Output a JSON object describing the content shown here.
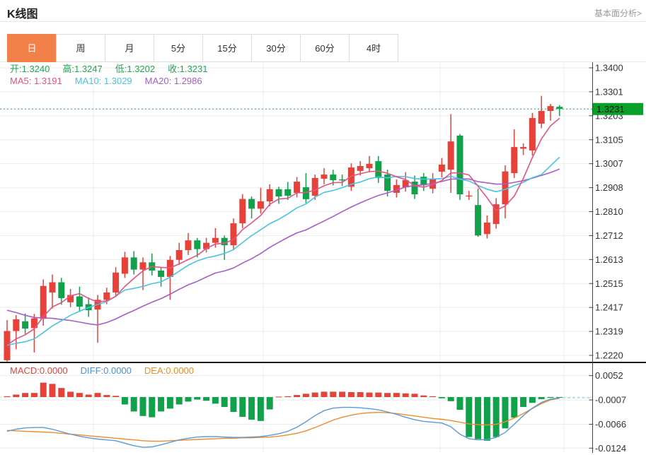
{
  "header": {
    "title": "K线图",
    "link_label": "基本面分析>"
  },
  "tabs": [
    {
      "label": "日",
      "active": true
    },
    {
      "label": "周",
      "active": false
    },
    {
      "label": "月",
      "active": false
    },
    {
      "label": "5分",
      "active": false
    },
    {
      "label": "15分",
      "active": false
    },
    {
      "label": "30分",
      "active": false
    },
    {
      "label": "60分",
      "active": false
    },
    {
      "label": "4时",
      "active": false
    }
  ],
  "legend_ohlc": [
    {
      "key": "open",
      "label": "开",
      "value": "1.3240"
    },
    {
      "key": "high",
      "label": "高",
      "value": "1.3247"
    },
    {
      "key": "low",
      "label": "低",
      "value": "1.3202"
    },
    {
      "key": "close",
      "label": "收",
      "value": "1.3231"
    }
  ],
  "legend_ma": [
    {
      "key": "ma5",
      "label": "MA5",
      "value": "1.3191"
    },
    {
      "key": "ma10",
      "label": "MA10",
      "value": "1.3029"
    },
    {
      "key": "ma20",
      "label": "MA20",
      "value": "1.2986"
    }
  ],
  "legend_macd": [
    {
      "key": "macd",
      "label": "MACD",
      "value": "0.0000"
    },
    {
      "key": "diff",
      "label": "DIFF",
      "value": "0.0000"
    },
    {
      "key": "dea",
      "label": "DEA",
      "value": "0.0000"
    }
  ],
  "colors": {
    "up": "#e64239",
    "down": "#12a14b",
    "ma5": "#e85285",
    "ma10": "#49c4e4",
    "ma20": "#a75ec6",
    "diff": "#5b9bd5",
    "dea": "#ee8c2b",
    "ohlc_text": "#21a84e",
    "macd_text": "#e5433b",
    "diff_text": "#4a90d9",
    "dea_text": "#f08c1e",
    "price_line": "#1fa84e",
    "badge_bg": "#0aa02a",
    "badge_text": "#111111",
    "grid": "#ececec",
    "axis": "#444444",
    "separator": "#1a1a1a",
    "zero_dash": "#cfe8d8",
    "ext_dash": "#a9d7ea",
    "label_text": "#333333"
  },
  "chart_data": {
    "type": "candlestick",
    "title": "K线图",
    "interval": "日",
    "grid": true,
    "legend_position": "top-left",
    "current_price": 1.3231,
    "current_price_label": "1.3231",
    "y_axis_labels_main": [
      "1.3400",
      "1.3301",
      "1.3203",
      "1.3105",
      "1.3007",
      "1.2908",
      "1.2810",
      "1.2712",
      "1.2613",
      "1.2515",
      "1.2417",
      "1.2319",
      "1.2220"
    ],
    "y_main_max": 1.34,
    "y_main_min": 1.222,
    "y_axis_labels_macd": [
      "0.0052",
      "-0.0007",
      "-0.0066",
      "-0.0124"
    ],
    "macd_axis_values": [
      0.0052,
      -0.0007,
      -0.0066,
      -0.0124
    ],
    "ma_periods": [
      5,
      10,
      20
    ],
    "ohlc_last": {
      "open": 1.324,
      "high": 1.3247,
      "low": 1.3202,
      "close": 1.3231
    },
    "candles_ohlc": [
      [
        1.22,
        1.2365,
        1.2195,
        1.232
      ],
      [
        1.232,
        1.2385,
        1.2245,
        1.2368
      ],
      [
        1.236,
        1.2392,
        1.2308,
        1.233
      ],
      [
        1.2332,
        1.239,
        1.2232,
        1.2372
      ],
      [
        1.237,
        1.2532,
        1.2342,
        1.2505
      ],
      [
        1.2478,
        1.2552,
        1.2412,
        1.252
      ],
      [
        1.252,
        1.2538,
        1.2428,
        1.2455
      ],
      [
        1.2438,
        1.2492,
        1.2418,
        1.2468
      ],
      [
        1.2462,
        1.2502,
        1.2398,
        1.242
      ],
      [
        1.243,
        1.2458,
        1.2378,
        1.2405
      ],
      [
        1.2408,
        1.2468,
        1.2272,
        1.2448
      ],
      [
        1.2448,
        1.2498,
        1.243,
        1.2478
      ],
      [
        1.2478,
        1.2582,
        1.2462,
        1.256
      ],
      [
        1.2555,
        1.2645,
        1.2538,
        1.2622
      ],
      [
        1.2622,
        1.2648,
        1.2552,
        1.2572
      ],
      [
        1.2572,
        1.2622,
        1.2488,
        1.2602
      ],
      [
        1.2602,
        1.2638,
        1.2548,
        1.2568
      ],
      [
        1.2568,
        1.2582,
        1.2502,
        1.2542
      ],
      [
        1.2542,
        1.2628,
        1.2448,
        1.2612
      ],
      [
        1.2612,
        1.2682,
        1.2592,
        1.2652
      ],
      [
        1.2652,
        1.2722,
        1.2632,
        1.2692
      ],
      [
        1.2692,
        1.2702,
        1.2622,
        1.2656
      ],
      [
        1.2656,
        1.2702,
        1.2642,
        1.2682
      ],
      [
        1.2682,
        1.2742,
        1.2662,
        1.2702
      ],
      [
        1.2702,
        1.2712,
        1.2612,
        1.2672
      ],
      [
        1.2672,
        1.2782,
        1.2652,
        1.2762
      ],
      [
        1.2762,
        1.2882,
        1.2742,
        1.2862
      ],
      [
        1.2862,
        1.2872,
        1.2782,
        1.2822
      ],
      [
        1.2822,
        1.2908,
        1.2802,
        1.2852
      ],
      [
        1.2852,
        1.2922,
        1.2832,
        1.2902
      ],
      [
        1.2902,
        1.2912,
        1.2842,
        1.2872
      ],
      [
        1.2902,
        1.2932,
        1.2858,
        1.2875
      ],
      [
        1.2887,
        1.2952,
        1.2868,
        1.2933
      ],
      [
        1.291,
        1.2968,
        1.2845,
        1.2861
      ],
      [
        1.2875,
        1.2962,
        1.2858,
        1.2948
      ],
      [
        1.2945,
        1.2988,
        1.2922,
        1.2962
      ],
      [
        1.2962,
        1.2982,
        1.2918,
        1.2939
      ],
      [
        1.2942,
        1.2962,
        1.2915,
        1.2938
      ],
      [
        1.2912,
        1.3008,
        1.2895,
        1.2991
      ],
      [
        1.2977,
        1.3017,
        1.2958,
        1.2997
      ],
      [
        1.2988,
        1.3038,
        1.2972,
        1.3006
      ],
      [
        1.3017,
        1.3038,
        1.2928,
        1.2948
      ],
      [
        1.2962,
        1.2982,
        1.2872,
        1.2895
      ],
      [
        1.2887,
        1.2942,
        1.2868,
        1.2919
      ],
      [
        1.291,
        1.2972,
        1.2892,
        1.2939
      ],
      [
        1.2933,
        1.2958,
        1.2862,
        1.2881
      ],
      [
        1.2953,
        1.2968,
        1.2895,
        1.2918
      ],
      [
        1.2904,
        1.2968,
        1.2885,
        1.2945
      ],
      [
        1.2974,
        1.303,
        1.295,
        1.3003
      ],
      [
        1.2982,
        1.321,
        1.2887,
        1.3098
      ],
      [
        1.3122,
        1.3128,
        1.2858,
        1.2881
      ],
      [
        1.2872,
        1.2895,
        1.2858,
        1.2876
      ],
      [
        1.2837,
        1.2905,
        1.2707,
        1.2712
      ],
      [
        1.2718,
        1.2794,
        1.27,
        1.2765
      ],
      [
        1.2759,
        1.2865,
        1.274,
        1.284
      ],
      [
        1.284,
        1.3,
        1.2782,
        1.2975
      ],
      [
        1.2968,
        1.3148,
        1.2948,
        1.3075
      ],
      [
        1.3068,
        1.309,
        1.3042,
        1.3075
      ],
      [
        1.3061,
        1.3215,
        1.304,
        1.3194
      ],
      [
        1.3171,
        1.3285,
        1.3152,
        1.3223
      ],
      [
        1.3223,
        1.3252,
        1.3183,
        1.3243
      ],
      [
        1.324,
        1.3247,
        1.3202,
        1.3231
      ]
    ],
    "prior_closes_for_ma": [
      1.256,
      1.2555,
      1.255,
      1.255,
      1.2545,
      1.2548,
      1.2552,
      1.255,
      1.2546,
      1.2542,
      1.228,
      1.2265,
      1.2255,
      1.225,
      1.2245,
      1.2242,
      1.2246,
      1.225,
      1.2255
    ],
    "macd_hist": [
      0.0002,
      0.0006,
      0.001,
      0.001,
      0.0035,
      0.0032,
      0.0022,
      0.0013,
      0.001,
      0.0006,
      0.001,
      0.0005,
      0.0003,
      -0.0018,
      -0.0035,
      -0.0046,
      -0.0049,
      -0.0035,
      -0.0028,
      -0.0018,
      -0.0011,
      -0.0006,
      -0.0009,
      -0.0016,
      -0.0024,
      -0.0036,
      -0.0048,
      -0.0055,
      -0.0058,
      -0.003,
      0.0001,
      0.0002,
      0.0005,
      0.0008,
      0.0011,
      0.0013,
      0.0013,
      0.0013,
      0.0012,
      0.0012,
      0.0011,
      0.0011,
      0.001,
      0.001,
      0.0009,
      0.0008,
      0.0004,
      0.0002,
      -0.0003,
      -0.001,
      -0.0031,
      -0.0097,
      -0.0102,
      -0.0106,
      -0.0097,
      -0.0076,
      -0.005,
      -0.0024,
      -0.0014,
      -0.0005,
      -0.0002,
      -0.0001
    ],
    "diff_line": [
      -0.0083,
      -0.0078,
      -0.0075,
      -0.0074,
      -0.0074,
      -0.0078,
      -0.0084,
      -0.009,
      -0.0095,
      -0.0099,
      -0.0102,
      -0.0104,
      -0.0106,
      -0.0112,
      -0.0118,
      -0.0122,
      -0.0121,
      -0.0116,
      -0.011,
      -0.0104,
      -0.01,
      -0.0097,
      -0.0096,
      -0.0096,
      -0.0097,
      -0.0098,
      -0.0098,
      -0.0097,
      -0.0096,
      -0.0093,
      -0.0089,
      -0.0083,
      -0.0073,
      -0.006,
      -0.0045,
      -0.0033,
      -0.0027,
      -0.0025,
      -0.0025,
      -0.0026,
      -0.0028,
      -0.0031,
      -0.0036,
      -0.0042,
      -0.0049,
      -0.0055,
      -0.0059,
      -0.0061,
      -0.0063,
      -0.0072,
      -0.009,
      -0.0101,
      -0.0104,
      -0.0103,
      -0.0098,
      -0.0086,
      -0.0066,
      -0.0045,
      -0.0027,
      -0.0013,
      -0.0005,
      -0.0002
    ],
    "dea_line": [
      -0.0081,
      -0.0082,
      -0.0083,
      -0.0084,
      -0.0085,
      -0.0086,
      -0.0088,
      -0.009,
      -0.0092,
      -0.0094,
      -0.0096,
      -0.0098,
      -0.01,
      -0.0102,
      -0.0104,
      -0.0106,
      -0.0107,
      -0.0107,
      -0.0106,
      -0.0105,
      -0.0104,
      -0.0103,
      -0.0102,
      -0.0101,
      -0.01,
      -0.01,
      -0.0099,
      -0.0099,
      -0.0098,
      -0.0097,
      -0.0095,
      -0.0092,
      -0.0088,
      -0.0082,
      -0.0074,
      -0.0065,
      -0.0056,
      -0.0049,
      -0.0044,
      -0.004,
      -0.0038,
      -0.0037,
      -0.0038,
      -0.004,
      -0.0043,
      -0.0046,
      -0.0049,
      -0.0052,
      -0.0054,
      -0.0057,
      -0.0061,
      -0.0065,
      -0.0067,
      -0.0068,
      -0.0066,
      -0.006,
      -0.0051,
      -0.004,
      -0.0028,
      -0.0016,
      -0.0007,
      -0.0003
    ]
  }
}
